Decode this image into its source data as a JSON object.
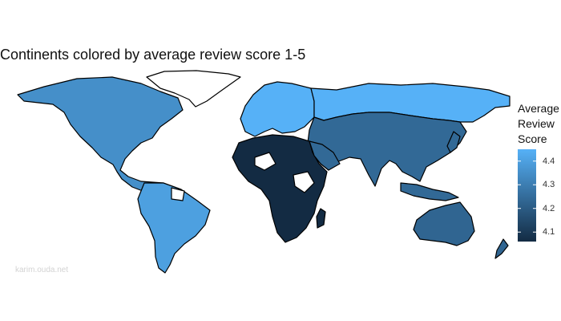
{
  "title": "Continents colored by average review score 1-5",
  "legend": {
    "title_lines": [
      "Average",
      "Review",
      "Score"
    ],
    "ticks": [
      "4.4",
      "4.3",
      "4.2",
      "4.1"
    ],
    "tick_values": [
      4.4,
      4.3,
      4.2,
      4.1
    ],
    "range": [
      4.06,
      4.45
    ],
    "color_low": "#132B43",
    "color_high": "#56B1F7"
  },
  "watermark": "karim.ouda.net",
  "map": {
    "border_color": "#000000",
    "no_data_color": "#ffffff",
    "regions": [
      {
        "name": "Europe",
        "score": 4.45
      },
      {
        "name": "North America",
        "score": 4.35
      },
      {
        "name": "South America",
        "score": 4.4
      },
      {
        "name": "Asia",
        "score": 4.24
      },
      {
        "name": "Oceania",
        "score": 4.23
      },
      {
        "name": "Africa",
        "score": 4.06
      },
      {
        "name": "Antarctica",
        "score": null
      }
    ]
  }
}
